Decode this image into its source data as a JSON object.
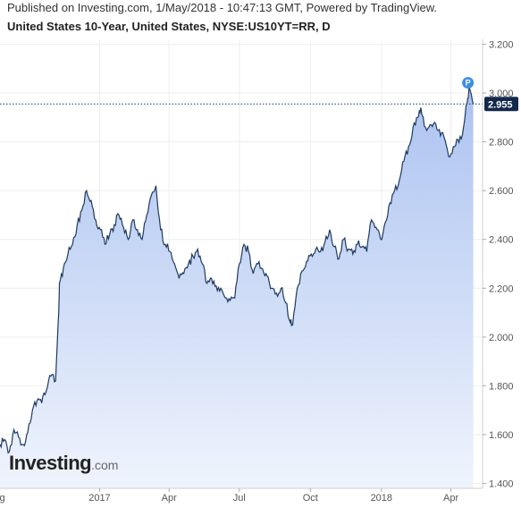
{
  "header": {
    "published": "Published on Investing.com, 1/May/2018 - 10:47:13 GMT, Powered by TradingView.",
    "title": "United States 10-Year, United States, NYSE:US10YT=RR, D"
  },
  "logo": {
    "main": "Investing",
    "suffix": ".com"
  },
  "colors": {
    "line": "#1e3a5f",
    "fill_top": "#a8c0ef",
    "fill_bottom": "#eef3fd",
    "last_badge": "#13294b",
    "marker": "#3d8fe0",
    "grid": "#eeeeee"
  },
  "chart_data": {
    "type": "area",
    "title": "United States 10-Year, United States, NYSE:US10YT=RR, D",
    "xlabel": "",
    "ylabel": "",
    "ylim": [
      1.38,
      3.22
    ],
    "xlim": [
      "2016-08-25",
      "2018-05-12"
    ],
    "y_ticks": [
      1.4,
      1.6,
      1.8,
      2.0,
      2.2,
      2.4,
      2.6,
      2.8,
      3.0,
      3.2
    ],
    "y_tick_labels": [
      "1.400",
      "1.600",
      "1.800",
      "2.000",
      "2.200",
      "2.400",
      "2.600",
      "2.800",
      "3.000",
      "3.200"
    ],
    "x_ticks": [
      {
        "date": "2016-08-01",
        "label": "Aug"
      },
      {
        "date": "2017-01-01",
        "label": "2017"
      },
      {
        "date": "2017-04-01",
        "label": "Apr"
      },
      {
        "date": "2017-07-01",
        "label": "Jul"
      },
      {
        "date": "2017-10-01",
        "label": "Oct"
      },
      {
        "date": "2018-01-01",
        "label": "2018"
      },
      {
        "date": "2018-04-01",
        "label": "Apr"
      }
    ],
    "last_value": 2.955,
    "last_value_label": "2.955",
    "marker_label": "P",
    "grid": true,
    "series": [
      {
        "x": [
          "2016-08-25",
          "2016-08-31",
          "2016-09-06",
          "2016-09-12",
          "2016-09-18",
          "2016-09-24",
          "2016-09-30",
          "2016-10-06",
          "2016-10-12",
          "2016-10-18",
          "2016-10-24",
          "2016-10-30",
          "2016-11-05",
          "2016-11-09",
          "2016-11-10",
          "2016-11-15",
          "2016-11-21",
          "2016-11-27",
          "2016-12-03",
          "2016-12-09",
          "2016-12-15",
          "2016-12-21",
          "2016-12-27",
          "2017-01-02",
          "2017-01-08",
          "2017-01-14",
          "2017-01-20",
          "2017-01-26",
          "2017-02-01",
          "2017-02-07",
          "2017-02-13",
          "2017-02-19",
          "2017-02-25",
          "2017-03-03",
          "2017-03-09",
          "2017-03-15",
          "2017-03-21",
          "2017-03-27",
          "2017-04-02",
          "2017-04-08",
          "2017-04-14",
          "2017-04-20",
          "2017-04-26",
          "2017-05-02",
          "2017-05-08",
          "2017-05-14",
          "2017-05-20",
          "2017-05-26",
          "2017-06-01",
          "2017-06-07",
          "2017-06-13",
          "2017-06-19",
          "2017-06-25",
          "2017-07-01",
          "2017-07-07",
          "2017-07-13",
          "2017-07-19",
          "2017-07-25",
          "2017-07-31",
          "2017-08-06",
          "2017-08-12",
          "2017-08-18",
          "2017-08-24",
          "2017-08-30",
          "2017-09-05",
          "2017-09-08",
          "2017-09-14",
          "2017-09-20",
          "2017-09-26",
          "2017-10-02",
          "2017-10-08",
          "2017-10-14",
          "2017-10-20",
          "2017-10-26",
          "2017-11-01",
          "2017-11-07",
          "2017-11-13",
          "2017-11-19",
          "2017-11-25",
          "2017-12-01",
          "2017-12-07",
          "2017-12-13",
          "2017-12-19",
          "2017-12-25",
          "2017-12-31",
          "2018-01-06",
          "2018-01-12",
          "2018-01-18",
          "2018-01-24",
          "2018-01-30",
          "2018-02-05",
          "2018-02-11",
          "2018-02-17",
          "2018-02-21",
          "2018-02-27",
          "2018-03-05",
          "2018-03-11",
          "2018-03-17",
          "2018-03-23",
          "2018-03-29",
          "2018-04-04",
          "2018-04-10",
          "2018-04-16",
          "2018-04-22",
          "2018-04-25",
          "2018-04-30"
        ],
        "y": [
          1.56,
          1.58,
          1.53,
          1.62,
          1.59,
          1.56,
          1.61,
          1.7,
          1.74,
          1.73,
          1.78,
          1.84,
          1.82,
          2.1,
          2.22,
          2.28,
          2.34,
          2.38,
          2.46,
          2.52,
          2.6,
          2.56,
          2.48,
          2.44,
          2.38,
          2.42,
          2.46,
          2.5,
          2.45,
          2.4,
          2.48,
          2.44,
          2.4,
          2.5,
          2.58,
          2.62,
          2.44,
          2.38,
          2.35,
          2.3,
          2.24,
          2.26,
          2.3,
          2.33,
          2.36,
          2.3,
          2.22,
          2.24,
          2.21,
          2.2,
          2.16,
          2.15,
          2.16,
          2.3,
          2.38,
          2.35,
          2.26,
          2.3,
          2.28,
          2.25,
          2.2,
          2.18,
          2.2,
          2.14,
          2.06,
          2.05,
          2.2,
          2.27,
          2.31,
          2.34,
          2.36,
          2.35,
          2.39,
          2.44,
          2.37,
          2.32,
          2.4,
          2.36,
          2.34,
          2.38,
          2.37,
          2.35,
          2.48,
          2.45,
          2.4,
          2.47,
          2.55,
          2.6,
          2.64,
          2.72,
          2.78,
          2.86,
          2.9,
          2.94,
          2.86,
          2.87,
          2.88,
          2.85,
          2.82,
          2.74,
          2.78,
          2.81,
          2.83,
          2.96,
          3.02,
          2.955
        ]
      }
    ]
  }
}
